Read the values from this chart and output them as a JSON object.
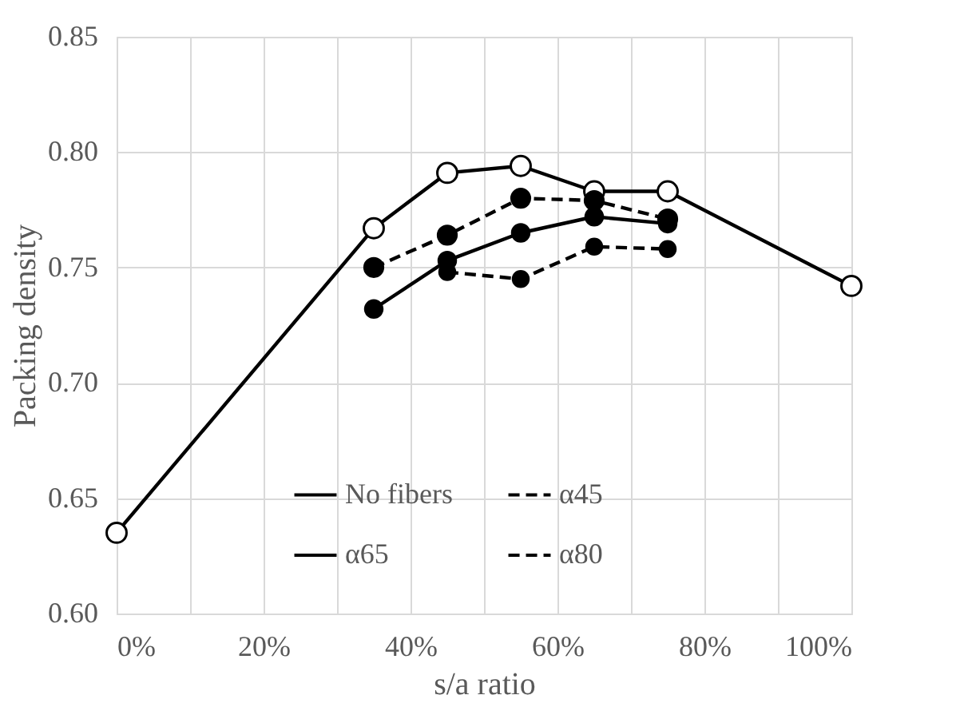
{
  "chart_data": {
    "type": "line",
    "xlabel": "s/a ratio",
    "ylabel": "Packing density",
    "xlim": [
      0,
      100
    ],
    "ylim": [
      0.6,
      0.85
    ],
    "xticks": [
      {
        "value": 0,
        "label": "0%"
      },
      {
        "value": 10,
        "label": null
      },
      {
        "value": 20,
        "label": "20%"
      },
      {
        "value": 30,
        "label": null
      },
      {
        "value": 40,
        "label": "40%"
      },
      {
        "value": 50,
        "label": null
      },
      {
        "value": 60,
        "label": "60%"
      },
      {
        "value": 70,
        "label": null
      },
      {
        "value": 80,
        "label": "80%"
      },
      {
        "value": 90,
        "label": null
      },
      {
        "value": 100,
        "label": "100%"
      }
    ],
    "yticks": [
      {
        "value": 0.6,
        "label": "0.60"
      },
      {
        "value": 0.65,
        "label": "0.65"
      },
      {
        "value": 0.7,
        "label": "0.70"
      },
      {
        "value": 0.75,
        "label": "0.75"
      },
      {
        "value": 0.8,
        "label": "0.80"
      },
      {
        "value": 0.85,
        "label": "0.85"
      }
    ],
    "grid": true,
    "legend": "bottom",
    "marker": "circle",
    "series": [
      {
        "name": "No fibers",
        "color": "#000000",
        "line_style": "solid",
        "x": [
          0,
          35,
          45,
          55,
          65,
          75,
          100
        ],
        "values": [
          0.635,
          0.767,
          0.791,
          0.794,
          0.783,
          0.783,
          0.742
        ]
      },
      {
        "name": "α45",
        "color": "#000000",
        "line_style": "dashed",
        "x": [
          35,
          45,
          55,
          65,
          75
        ],
        "values": [
          0.75,
          0.764,
          0.78,
          0.779,
          0.771
        ]
      },
      {
        "name": "α65",
        "color": "#000000",
        "line_style": "solid",
        "x": [
          35,
          45,
          55,
          65,
          75
        ],
        "values": [
          0.732,
          0.753,
          0.765,
          0.772,
          0.769
        ]
      },
      {
        "name": "α80",
        "color": "#000000",
        "line_style": "dashed",
        "x": [
          45,
          55,
          65,
          75
        ],
        "values": [
          0.748,
          0.745,
          0.759,
          0.758
        ]
      }
    ]
  }
}
